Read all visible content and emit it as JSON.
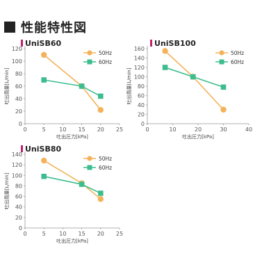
{
  "page": {
    "title": "性能特性図"
  },
  "chart_data": [
    {
      "type": "line",
      "title": "UniSB60",
      "xlabel": "吐出圧力[kPa]",
      "ylabel": "吐出風量[L/min]",
      "xlim": [
        0,
        25
      ],
      "ylim": [
        0,
        120
      ],
      "xticks": [
        0,
        5,
        10,
        15,
        20,
        25
      ],
      "yticks": [
        0,
        20,
        40,
        60,
        80,
        100,
        120
      ],
      "legend_position": "top-right",
      "series": [
        {
          "name": "50Hz",
          "color": "#f4b25a",
          "marker": "circle",
          "x": [
            5,
            15,
            20
          ],
          "y": [
            110,
            60,
            22
          ]
        },
        {
          "name": "60Hz",
          "color": "#3dbd8e",
          "marker": "square",
          "x": [
            5,
            15,
            20
          ],
          "y": [
            70,
            60,
            44
          ]
        }
      ]
    },
    {
      "type": "line",
      "title": "UniSB100",
      "xlabel": "吐出圧力[kPa]",
      "ylabel": "吐出風量[L/min]",
      "xlim": [
        0,
        40
      ],
      "ylim": [
        0,
        160
      ],
      "xticks": [
        0,
        10,
        20,
        30,
        40
      ],
      "yticks": [
        0,
        20,
        40,
        60,
        80,
        100,
        120,
        140,
        160
      ],
      "legend_position": "top-right",
      "series": [
        {
          "name": "50Hz",
          "color": "#f4b25a",
          "marker": "circle",
          "x": [
            7,
            18,
            30
          ],
          "y": [
            155,
            100,
            30
          ]
        },
        {
          "name": "60Hz",
          "color": "#3dbd8e",
          "marker": "square",
          "x": [
            7,
            18,
            30
          ],
          "y": [
            120,
            100,
            78
          ]
        }
      ]
    },
    {
      "type": "line",
      "title": "UniSB80",
      "xlabel": "吐出圧力[kPa]",
      "ylabel": "吐出風量[L/min]",
      "xlim": [
        0,
        25
      ],
      "ylim": [
        0,
        140
      ],
      "xticks": [
        0,
        5,
        10,
        15,
        20,
        25
      ],
      "yticks": [
        0,
        20,
        40,
        60,
        80,
        100,
        120,
        140
      ],
      "legend_position": "top-right",
      "series": [
        {
          "name": "50Hz",
          "color": "#f4b25a",
          "marker": "circle",
          "x": [
            5,
            15,
            20
          ],
          "y": [
            128,
            85,
            55
          ]
        },
        {
          "name": "60Hz",
          "color": "#3dbd8e",
          "marker": "square",
          "x": [
            5,
            15,
            20
          ],
          "y": [
            98,
            83,
            66
          ]
        }
      ]
    }
  ],
  "colors": {
    "title_marker": "#c4206d",
    "axis": "#999999"
  }
}
